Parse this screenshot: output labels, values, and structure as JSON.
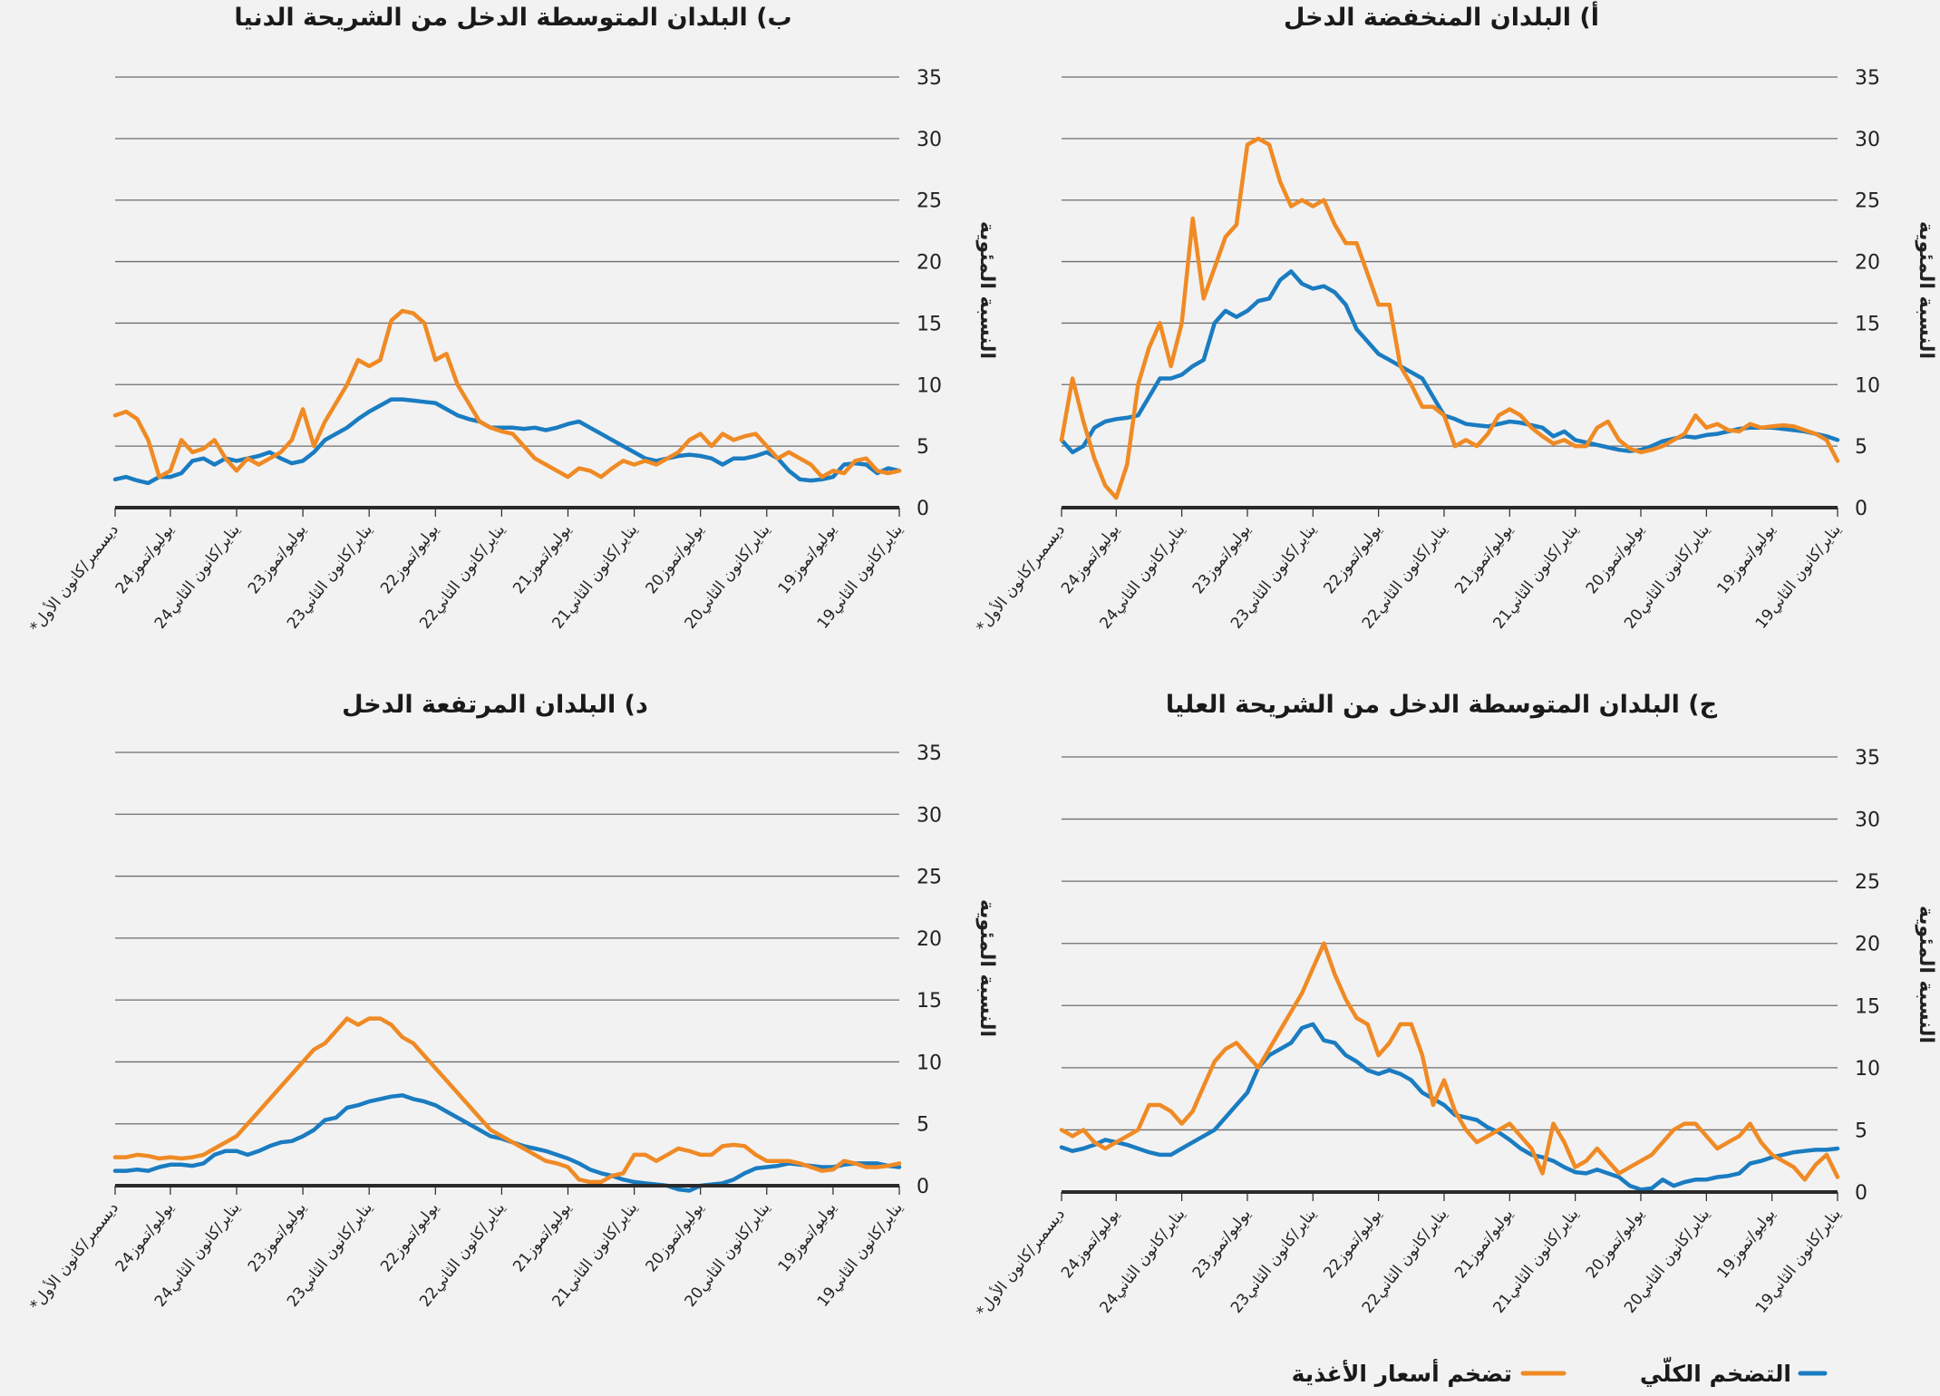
{
  "legend": {
    "headline": {
      "label": "التضخم الكلّي",
      "color": "#1a7cc1"
    },
    "food": {
      "label": "تضخم أسعار الأغذية",
      "color": "#f08a24"
    }
  },
  "chart_data": [
    {
      "type": "line",
      "title": "أ) البلدان المنخفضة الدخل",
      "ylabel": "النسبة المئوية",
      "ylim": [
        0,
        35
      ],
      "yticks": [
        "0",
        "5",
        "10",
        "15",
        "20",
        "25",
        "30",
        "35"
      ],
      "x_start": "2019-01",
      "x_end": "2024-12",
      "x_direction": "right-to-left",
      "xtick_labels": [
        "يناير/كانون الثاني19",
        "يوليو/تموز19",
        "يناير/كانون الثاني20",
        "يوليو/تموز20",
        "يناير/كانون الثاني21",
        "يوليو/تموز21",
        "يناير/كانون الثاني22",
        "يوليو/تموز22",
        "يناير/كانون الثاني23",
        "يوليو/تموز23",
        "يناير/كانون الثاني24",
        "يوليو/تموز24",
        "ديسمبر/كانون الأول*"
      ],
      "grid": true,
      "series": [
        {
          "name": "التضخم الكلّي",
          "values": [
            5.5,
            5.8,
            6.0,
            6.2,
            6.3,
            6.4,
            6.5,
            6.5,
            6.5,
            6.4,
            6.2,
            6.0,
            5.9,
            5.7,
            5.8,
            5.6,
            5.4,
            5.0,
            4.7,
            4.6,
            4.7,
            4.9,
            5.1,
            5.3,
            5.5,
            6.2,
            5.8,
            6.5,
            6.7,
            6.9,
            7.0,
            6.8,
            6.6,
            6.7,
            6.8,
            7.2,
            7.5,
            9.0,
            10.5,
            11.0,
            11.5,
            12.0,
            12.5,
            13.5,
            14.5,
            16.5,
            17.5,
            18.0,
            17.8,
            18.2,
            19.2,
            18.5,
            17.0,
            16.8,
            16.0,
            15.5,
            16.0,
            15.0,
            12.0,
            11.5,
            10.8,
            10.5,
            10.5,
            9.0,
            7.5,
            7.3,
            7.2,
            7.0,
            6.5,
            5.0,
            4.5,
            5.5
          ]
        },
        {
          "name": "تضخم أسعار الأغذية",
          "values": [
            3.8,
            5.5,
            6.0,
            6.3,
            6.6,
            6.7,
            6.6,
            6.5,
            6.8,
            6.2,
            6.3,
            6.8,
            6.5,
            7.5,
            6.0,
            5.5,
            5.0,
            4.7,
            4.5,
            4.8,
            5.5,
            7.0,
            6.5,
            5.0,
            5.0,
            5.5,
            5.2,
            5.8,
            6.5,
            7.5,
            8.0,
            7.5,
            6.0,
            5.0,
            5.5,
            5.0,
            7.5,
            8.2,
            8.2,
            10.0,
            11.5,
            16.5,
            16.5,
            19.0,
            21.5,
            21.5,
            23.0,
            25.0,
            24.5,
            25.0,
            24.5,
            26.5,
            29.5,
            30.0,
            29.5,
            23.0,
            22.0,
            19.5,
            17.0,
            23.5,
            15.0,
            11.5,
            15.0,
            13.0,
            10.0,
            3.5,
            0.8,
            1.8,
            4.0,
            7.0,
            10.5,
            5.5
          ]
        }
      ]
    },
    {
      "type": "line",
      "title": "ب) البلدان المتوسطة الدخل من الشريحة الدنيا",
      "ylabel": "النسبة المئوية",
      "ylim": [
        0,
        35
      ],
      "yticks": [
        "0",
        "5",
        "10",
        "15",
        "20",
        "25",
        "30",
        "35"
      ],
      "x_start": "2019-01",
      "x_end": "2024-12",
      "x_direction": "right-to-left",
      "xtick_labels": [
        "يناير/كانون الثاني19",
        "يوليو/تموز19",
        "يناير/كانون الثاني20",
        "يوليو/تموز20",
        "يناير/كانون الثاني21",
        "يوليو/تموز21",
        "يناير/كانون الثاني22",
        "يوليو/تموز22",
        "يناير/كانون الثاني23",
        "يوليو/تموز23",
        "يناير/كانون الثاني24",
        "يوليو/تموز24",
        "ديسمبر/كانون الأول*"
      ],
      "grid": true,
      "series": [
        {
          "name": "التضخم الكلّي",
          "values": [
            3.0,
            3.2,
            2.8,
            3.5,
            3.6,
            3.5,
            2.5,
            2.3,
            2.2,
            2.3,
            3.0,
            4.0,
            4.5,
            4.2,
            4.0,
            4.0,
            3.5,
            4.0,
            4.2,
            4.3,
            4.2,
            4.0,
            3.8,
            4.0,
            4.5,
            5.0,
            5.5,
            6.0,
            6.5,
            7.0,
            6.8,
            6.5,
            6.3,
            6.5,
            6.4,
            6.5,
            6.5,
            6.5,
            7.0,
            7.2,
            7.5,
            8.0,
            8.5,
            8.6,
            8.7,
            8.8,
            8.8,
            8.3,
            7.8,
            7.2,
            6.5,
            6.0,
            5.5,
            4.5,
            3.8,
            3.6,
            4.0,
            4.5,
            4.2,
            4.0,
            3.8,
            4.0,
            3.5,
            4.0,
            3.8,
            2.8,
            2.5,
            2.5,
            2.0,
            2.2,
            2.5,
            2.3
          ]
        },
        {
          "name": "تضخم أسعار الأغذية",
          "values": [
            3.0,
            2.8,
            3.0,
            4.0,
            3.8,
            2.8,
            3.0,
            2.5,
            3.5,
            4.0,
            4.5,
            4.0,
            5.0,
            6.0,
            5.8,
            5.5,
            6.0,
            5.0,
            6.0,
            5.5,
            4.5,
            4.0,
            3.5,
            3.8,
            3.5,
            3.8,
            3.2,
            2.5,
            3.0,
            3.2,
            2.5,
            3.0,
            3.5,
            4.0,
            5.0,
            6.0,
            6.2,
            6.5,
            7.0,
            8.5,
            10.0,
            12.5,
            12.0,
            15.0,
            15.8,
            16.0,
            15.2,
            12.0,
            11.5,
            12.0,
            10.0,
            8.5,
            7.0,
            5.0,
            8.0,
            5.5,
            4.5,
            4.0,
            3.5,
            4.0,
            3.0,
            4.0,
            5.5,
            4.8,
            4.5,
            5.5,
            3.0,
            2.5,
            5.5,
            7.2,
            7.8,
            7.5
          ]
        }
      ]
    },
    {
      "type": "line",
      "title": "ج) البلدان المتوسطة الدخل من الشريحة العليا",
      "ylabel": "النسبة المئوية",
      "ylim": [
        0,
        35
      ],
      "yticks": [
        "0",
        "5",
        "10",
        "15",
        "20",
        "25",
        "30",
        "35"
      ],
      "x_start": "2019-01",
      "x_end": "2024-12",
      "x_direction": "right-to-left",
      "xtick_labels": [
        "يناير/كانون الثاني19",
        "يوليو/تموز19",
        "يناير/كانون الثاني20",
        "يوليو/تموز20",
        "يناير/كانون الثاني21",
        "يوليو/تموز21",
        "يناير/كانون الثاني22",
        "يوليو/تموز22",
        "يناير/كانون الثاني23",
        "يوليو/تموز23",
        "يناير/كانون الثاني24",
        "يوليو/تموز24",
        "ديسمبر/كانون الأول*"
      ],
      "grid": true,
      "series": [
        {
          "name": "التضخم الكلّي",
          "values": [
            3.5,
            3.4,
            3.4,
            3.3,
            3.2,
            3.0,
            2.8,
            2.5,
            2.3,
            1.5,
            1.3,
            1.2,
            1.0,
            1.0,
            0.8,
            0.5,
            1.0,
            0.3,
            0.2,
            0.5,
            1.2,
            1.5,
            1.8,
            1.5,
            1.6,
            2.0,
            2.5,
            2.8,
            3.0,
            3.5,
            4.2,
            4.8,
            5.2,
            5.8,
            6.0,
            6.2,
            7.0,
            7.5,
            8.0,
            9.0,
            9.5,
            9.8,
            9.5,
            9.8,
            10.5,
            11.0,
            12.0,
            12.2,
            13.5,
            13.2,
            12.0,
            11.5,
            11.0,
            10.0,
            8.0,
            7.0,
            6.0,
            5.0,
            4.5,
            4.0,
            3.5,
            3.0,
            3.0,
            3.2,
            3.5,
            3.8,
            4.0,
            4.2,
            3.8,
            3.5,
            3.3,
            3.6
          ]
        },
        {
          "name": "تضخم أسعار الأغذية",
          "values": [
            1.2,
            3.0,
            2.2,
            1.0,
            2.0,
            2.5,
            3.0,
            4.0,
            5.5,
            4.5,
            4.0,
            3.5,
            4.5,
            5.5,
            5.5,
            5.0,
            4.0,
            3.0,
            2.5,
            2.0,
            1.5,
            2.5,
            3.5,
            2.5,
            2.0,
            4.0,
            5.5,
            1.5,
            3.5,
            4.5,
            5.5,
            5.0,
            4.5,
            4.0,
            5.0,
            6.5,
            9.0,
            7.0,
            11.0,
            13.5,
            13.5,
            12.0,
            11.0,
            13.5,
            14.0,
            15.5,
            17.5,
            20.0,
            18.0,
            16.0,
            14.5,
            13.0,
            11.5,
            10.0,
            11.0,
            12.0,
            11.5,
            10.5,
            8.5,
            6.5,
            5.5,
            6.5,
            7.0,
            7.0,
            5.0,
            4.5,
            4.0,
            3.5,
            4.0,
            5.0,
            4.5,
            5.0
          ]
        }
      ]
    },
    {
      "type": "line",
      "title": "د) البلدان المرتفعة الدخل",
      "ylabel": "النسبة المئوية",
      "ylim": [
        0,
        35
      ],
      "yticks": [
        "0",
        "5",
        "10",
        "15",
        "20",
        "25",
        "30",
        "35"
      ],
      "x_start": "2019-01",
      "x_end": "2024-12",
      "x_direction": "right-to-left",
      "xtick_labels": [
        "يناير/كانون الثاني19",
        "يوليو/تموز19",
        "يناير/كانون الثاني20",
        "يوليو/تموز20",
        "يناير/كانون الثاني21",
        "يوليو/تموز21",
        "يناير/كانون الثاني22",
        "يوليو/تموز22",
        "يناير/كانون الثاني23",
        "يوليو/تموز23",
        "يناير/كانون الثاني24",
        "يوليو/تموز24",
        "ديسمبر/كانون الأول*"
      ],
      "grid": true,
      "series": [
        {
          "name": "التضخم الكلّي",
          "values": [
            1.5,
            1.6,
            1.8,
            1.8,
            1.8,
            1.7,
            1.5,
            1.5,
            1.6,
            1.7,
            1.8,
            1.6,
            1.5,
            1.4,
            1.0,
            0.5,
            0.2,
            0.1,
            0.0,
            -0.4,
            -0.3,
            0.0,
            0.1,
            0.2,
            0.3,
            0.5,
            0.8,
            1.0,
            1.3,
            1.8,
            2.2,
            2.5,
            2.8,
            3.0,
            3.2,
            3.5,
            3.8,
            4.0,
            4.5,
            5.0,
            5.5,
            6.0,
            6.5,
            6.8,
            7.0,
            7.3,
            7.2,
            7.0,
            6.8,
            6.5,
            6.3,
            5.5,
            5.3,
            4.5,
            4.0,
            3.6,
            3.5,
            3.2,
            2.8,
            2.5,
            2.8,
            2.8,
            2.5,
            1.8,
            1.6,
            1.7,
            1.7,
            1.5,
            1.2,
            1.3,
            1.2,
            1.2
          ]
        },
        {
          "name": "تضخم أسعار الأغذية",
          "values": [
            1.8,
            1.6,
            1.5,
            1.5,
            1.8,
            2.0,
            1.3,
            1.2,
            1.5,
            1.8,
            2.0,
            2.0,
            2.0,
            2.5,
            3.2,
            3.3,
            3.2,
            2.5,
            2.5,
            2.8,
            3.0,
            2.5,
            2.0,
            2.5,
            2.5,
            1.0,
            0.8,
            0.3,
            0.3,
            0.5,
            1.5,
            1.8,
            2.0,
            2.5,
            3.0,
            3.5,
            4.0,
            4.5,
            5.5,
            6.5,
            7.5,
            8.5,
            9.5,
            10.5,
            11.5,
            12.0,
            13.0,
            13.5,
            13.5,
            13.0,
            13.5,
            12.5,
            11.5,
            11.0,
            10.0,
            9.0,
            8.0,
            7.0,
            6.0,
            5.0,
            4.0,
            3.5,
            3.0,
            2.5,
            2.3,
            2.2,
            2.3,
            2.2,
            2.4,
            2.5,
            2.3,
            2.3
          ]
        }
      ]
    }
  ]
}
